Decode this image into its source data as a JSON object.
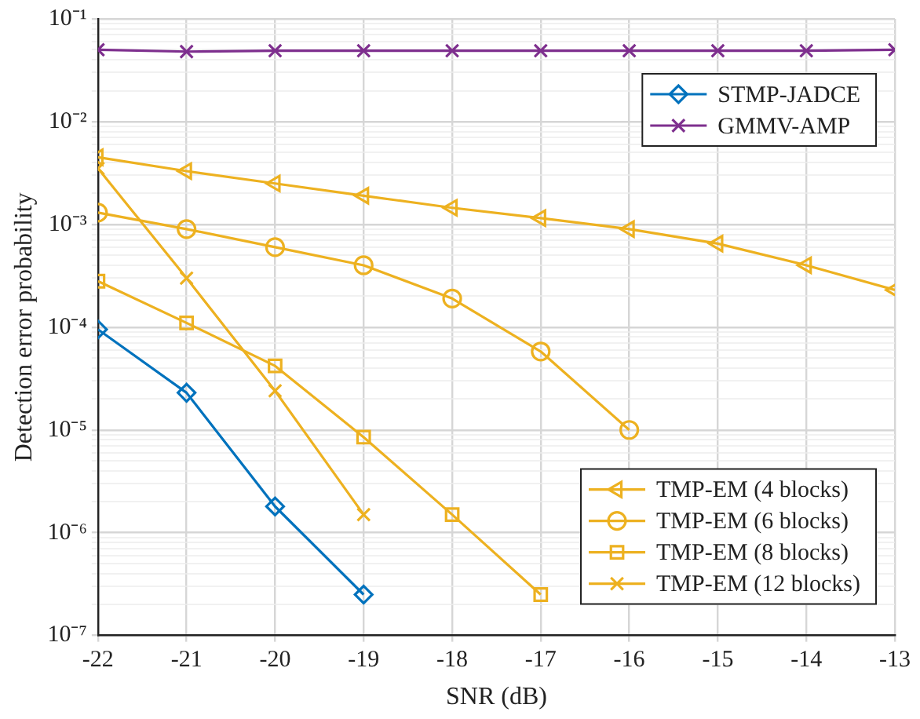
{
  "chart_data": {
    "type": "line",
    "xlabel": "SNR (dB)",
    "ylabel": "Detection error probability",
    "log": "y",
    "grid": true,
    "legend": "right",
    "line_style": "solid",
    "x": [
      -22,
      -21,
      -20,
      -19,
      -18,
      -17,
      -16,
      -15,
      -14,
      -13
    ],
    "xlim": [
      -22,
      -13
    ],
    "xticks": [
      -22,
      -21,
      -20,
      -19,
      -18,
      -17,
      -16,
      -15,
      -14,
      -13
    ],
    "ylim": [
      1e-07,
      0.1
    ],
    "yticks": [
      {
        "value": 1e-07,
        "label": "10⁻⁷"
      },
      {
        "value": 2e-07,
        "label": null
      },
      {
        "value": 3e-07,
        "label": null
      },
      {
        "value": 4e-07,
        "label": null
      },
      {
        "value": 5e-07,
        "label": null
      },
      {
        "value": 6e-07,
        "label": null
      },
      {
        "value": 7e-07,
        "label": null
      },
      {
        "value": 8e-07,
        "label": null
      },
      {
        "value": 9e-07,
        "label": null
      },
      {
        "value": 1e-06,
        "label": "10⁻⁶"
      },
      {
        "value": 2e-06,
        "label": null
      },
      {
        "value": 3e-06,
        "label": null
      },
      {
        "value": 4e-06,
        "label": null
      },
      {
        "value": 5e-06,
        "label": null
      },
      {
        "value": 6e-06,
        "label": null
      },
      {
        "value": 7e-06,
        "label": null
      },
      {
        "value": 8e-06,
        "label": null
      },
      {
        "value": 9e-06,
        "label": null
      },
      {
        "value": 1e-05,
        "label": "10⁻⁵"
      },
      {
        "value": 2e-05,
        "label": null
      },
      {
        "value": 3e-05,
        "label": null
      },
      {
        "value": 4e-05,
        "label": null
      },
      {
        "value": 5e-05,
        "label": null
      },
      {
        "value": 6e-05,
        "label": null
      },
      {
        "value": 7e-05,
        "label": null
      },
      {
        "value": 8e-05,
        "label": null
      },
      {
        "value": 9e-05,
        "label": null
      },
      {
        "value": 0.0001,
        "label": "10⁻⁴"
      },
      {
        "value": 0.0002,
        "label": null
      },
      {
        "value": 0.0003,
        "label": null
      },
      {
        "value": 0.0004,
        "label": null
      },
      {
        "value": 0.0005,
        "label": null
      },
      {
        "value": 0.0006,
        "label": null
      },
      {
        "value": 0.0007,
        "label": null
      },
      {
        "value": 0.0008,
        "label": null
      },
      {
        "value": 0.0009,
        "label": null
      },
      {
        "value": 0.001,
        "label": "10⁻³"
      },
      {
        "value": 0.002,
        "label": null
      },
      {
        "value": 0.003,
        "label": null
      },
      {
        "value": 0.004,
        "label": null
      },
      {
        "value": 0.005,
        "label": null
      },
      {
        "value": 0.006,
        "label": null
      },
      {
        "value": 0.007,
        "label": null
      },
      {
        "value": 0.008,
        "label": null
      },
      {
        "value": 0.009,
        "label": null
      },
      {
        "value": 0.01,
        "label": "10⁻²"
      },
      {
        "value": 0.02,
        "label": null
      },
      {
        "value": 0.03,
        "label": null
      },
      {
        "value": 0.04,
        "label": null
      },
      {
        "value": 0.05,
        "label": null
      },
      {
        "value": 0.06,
        "label": null
      },
      {
        "value": 0.07,
        "label": null
      },
      {
        "value": 0.08,
        "label": null
      },
      {
        "value": 0.09,
        "label": null
      },
      {
        "value": 0.1,
        "label": "10⁻¹"
      }
    ],
    "series": [
      {
        "name": "STMP-JADCE",
        "color": "#0072bd",
        "marker": "diamond",
        "values": [
          9.5e-05,
          2.3e-05,
          1.8e-06,
          2.5e-07,
          null,
          null,
          null,
          null,
          null,
          null
        ]
      },
      {
        "name": "GMMV-AMP",
        "color": "#7e2f8e",
        "marker": "cross",
        "values": [
          0.05,
          0.048,
          0.049,
          0.049,
          0.049,
          0.049,
          0.049,
          0.049,
          0.049,
          0.05
        ]
      },
      {
        "name": "TMP-EM (4 blocks)",
        "color": "#edb120",
        "marker": "triangle",
        "values": [
          0.0045,
          0.0033,
          0.0025,
          0.0019,
          0.00145,
          0.00115,
          0.0009,
          0.00065,
          0.0004,
          0.00023
        ]
      },
      {
        "name": "TMP-EM (6 blocks)",
        "color": "#edb120",
        "marker": "circle",
        "values": [
          0.0013,
          0.0009,
          0.0006,
          0.0004,
          0.00019,
          5.8e-05,
          1e-05,
          null,
          null,
          null
        ]
      },
      {
        "name": "TMP-EM (8 blocks)",
        "color": "#edb120",
        "marker": "square",
        "values": [
          0.00028,
          0.00011,
          4.2e-05,
          8.5e-06,
          1.5e-06,
          2.5e-07,
          null,
          null,
          null,
          null
        ]
      },
      {
        "name": "TMP-EM (12 blocks)",
        "color": "#edb120",
        "marker": "cross",
        "values": [
          0.0035,
          0.0003,
          2.4e-05,
          1.5e-06,
          null,
          null,
          null,
          null,
          null,
          null
        ]
      }
    ]
  }
}
